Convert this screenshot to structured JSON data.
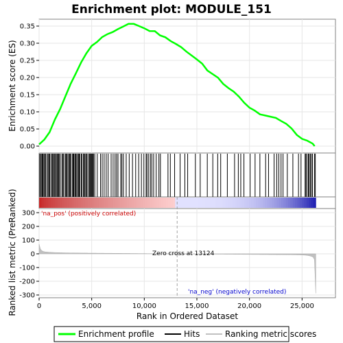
{
  "chart_data": {
    "type": "line",
    "title": "Enrichment plot: MODULE_151",
    "xlabel": "Rank in Ordered Dataset",
    "ylabel_top": "Enrichment score (ES)",
    "ylabel_bottom": "Ranked list metric (PreRanked)",
    "xlim": [
      0,
      27000
    ],
    "x_ticks": [
      "0",
      "5,000",
      "10,000",
      "15,000",
      "20,000",
      "25,000"
    ],
    "x_tick_values": [
      0,
      5000,
      10000,
      15000,
      20000,
      25000
    ],
    "es_ylim": [
      -0.02,
      0.37
    ],
    "es_ticks": [
      "0.00",
      "0.05",
      "0.10",
      "0.15",
      "0.20",
      "0.25",
      "0.30",
      "0.35"
    ],
    "es_tick_values": [
      0.0,
      0.05,
      0.1,
      0.15,
      0.2,
      0.25,
      0.3,
      0.35
    ],
    "metric_ylim": [
      -320,
      330
    ],
    "metric_ticks": [
      "300",
      "200",
      "100",
      "0",
      "-100",
      "-200",
      "-300"
    ],
    "metric_tick_values": [
      300,
      200,
      100,
      0,
      -100,
      -200,
      -300
    ],
    "enrichment_profile": {
      "name": "Enrichment profile",
      "color": "#00ff00",
      "x": [
        0,
        500,
        1000,
        1500,
        2000,
        2500,
        3000,
        3500,
        4000,
        4500,
        5000,
        5500,
        6000,
        6500,
        7000,
        7500,
        8000,
        8500,
        9000,
        9500,
        10000,
        10500,
        11000,
        11500,
        12000,
        12500,
        13000,
        13500,
        14000,
        14500,
        15000,
        15500,
        16000,
        16500,
        17000,
        17500,
        18000,
        18500,
        19000,
        19500,
        20000,
        20500,
        21000,
        21500,
        22000,
        22500,
        23000,
        23500,
        24000,
        24500,
        25000,
        25500,
        26000,
        26200
      ],
      "y": [
        0.005,
        0.02,
        0.04,
        0.075,
        0.11,
        0.145,
        0.18,
        0.215,
        0.245,
        0.27,
        0.29,
        0.305,
        0.318,
        0.325,
        0.335,
        0.342,
        0.348,
        0.354,
        0.358,
        0.35,
        0.342,
        0.338,
        0.336,
        0.322,
        0.315,
        0.308,
        0.298,
        0.287,
        0.278,
        0.265,
        0.252,
        0.238,
        0.222,
        0.21,
        0.198,
        0.184,
        0.17,
        0.158,
        0.142,
        0.128,
        0.112,
        0.102,
        0.095,
        0.09,
        0.085,
        0.08,
        0.075,
        0.065,
        0.05,
        0.035,
        0.022,
        0.015,
        0.005,
        0.0
      ]
    },
    "hits_label": "Hits",
    "ranking_label": "Ranking metric scores",
    "annotations": {
      "zero_cross": "Zero cross at 13124",
      "pos_label": "'na_pos' (positively correlated)",
      "neg_label": "'na_neg' (negatively correlated)"
    },
    "zero_cross_x": 13124,
    "n_ranks": 26300,
    "colors": {
      "pos_label": "#cc0000",
      "neg_label": "#0000cc",
      "metric_fill": "#c0c0c0",
      "hit": "#000000"
    }
  },
  "legend": {
    "items": [
      "Enrichment profile",
      "Hits",
      "Ranking metric scores"
    ]
  }
}
